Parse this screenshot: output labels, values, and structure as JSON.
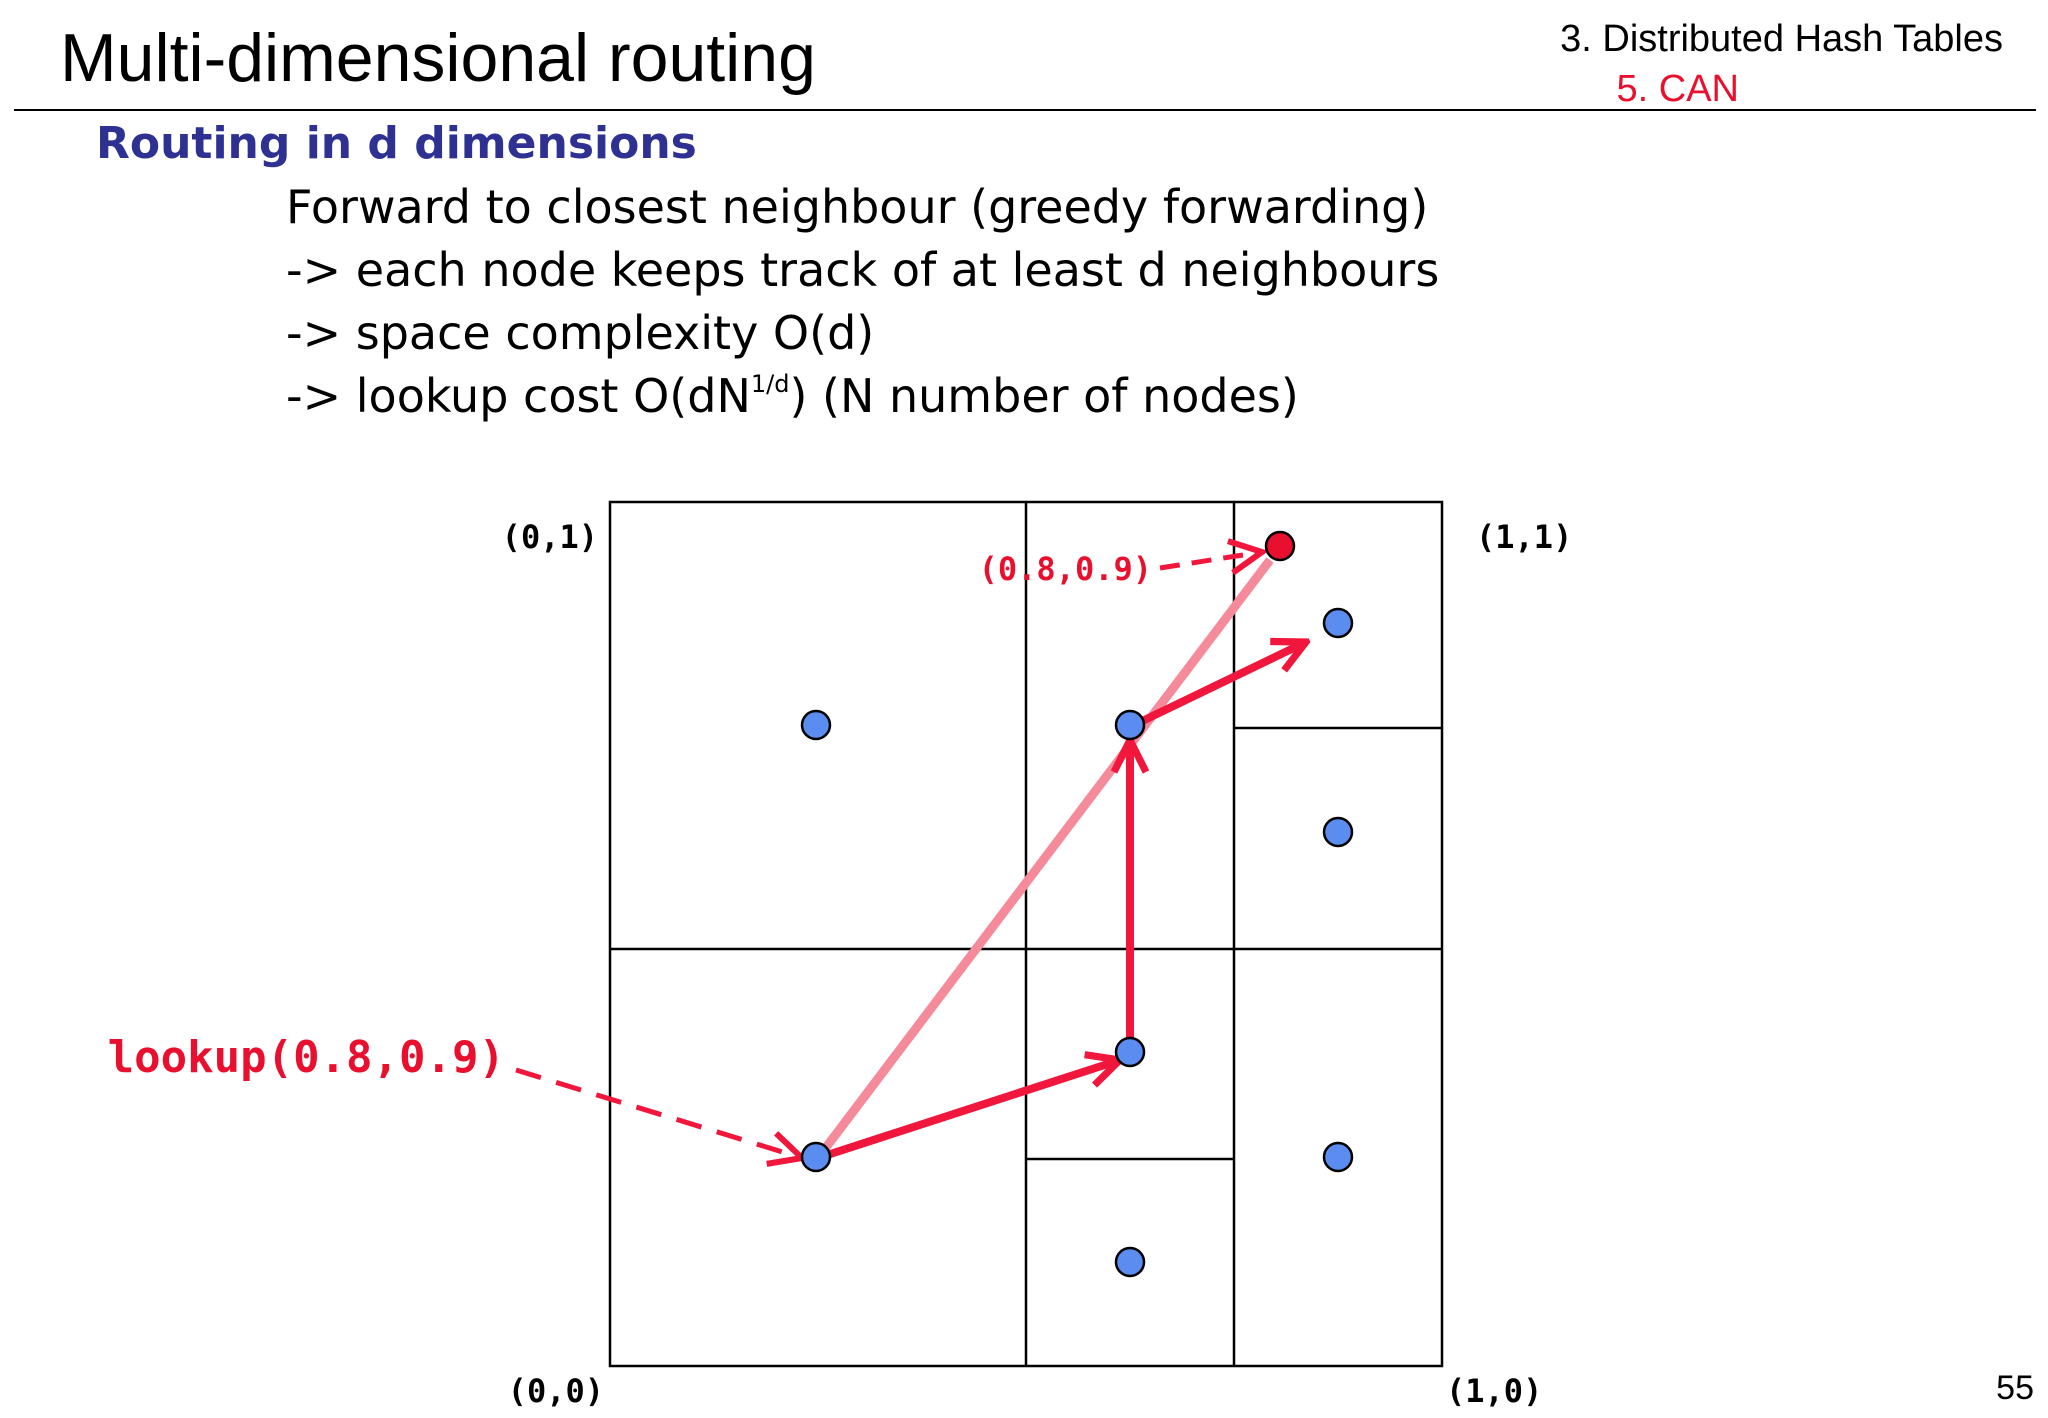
{
  "header": {
    "title": "Multi-dimensional routing",
    "section": "3. Distributed Hash Tables",
    "subsection": "5. CAN"
  },
  "content": {
    "heading": "Routing in d dimensions",
    "bullets": [
      "Forward to closest neighbour (greedy forwarding)",
      "-> each node keeps track of at least d neighbours",
      "-> space complexity O(d)"
    ],
    "lookup_bullet": {
      "prefix": "-> lookup cost O(dN",
      "exponent": "1/d",
      "suffix": ") (N number of nodes)"
    }
  },
  "diagram": {
    "corners": {
      "top_left": "(0,1)",
      "top_right": "(1,1)",
      "bottom_left": "(0,0)",
      "bottom_right": "(1,0)"
    },
    "lookup_label": "lookup(0.8,0.9)",
    "target_label": "(0.8,0.9)",
    "colors": {
      "node": "#5b8cf0",
      "target": "#e8102e",
      "route": "#f0163c",
      "direct_path": "#f58a9b",
      "heading": "#2e3192"
    }
  },
  "footer": {
    "page_number": "55"
  }
}
